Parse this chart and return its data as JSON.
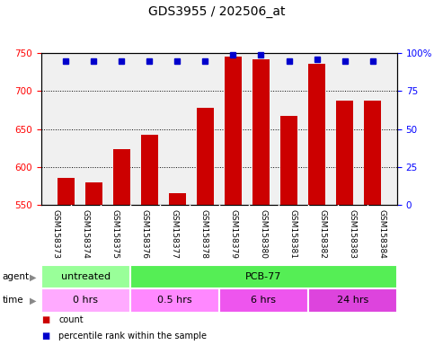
{
  "title": "GDS3955 / 202506_at",
  "samples": [
    "GSM158373",
    "GSM158374",
    "GSM158375",
    "GSM158376",
    "GSM158377",
    "GSM158378",
    "GSM158379",
    "GSM158380",
    "GSM158381",
    "GSM158382",
    "GSM158383",
    "GSM158384"
  ],
  "counts": [
    586,
    580,
    623,
    643,
    565,
    678,
    746,
    742,
    667,
    736,
    688,
    687
  ],
  "percentiles": [
    95,
    95,
    95,
    95,
    95,
    95,
    99,
    99,
    95,
    96,
    95,
    95
  ],
  "ylim_left": [
    550,
    750
  ],
  "ylim_right": [
    0,
    100
  ],
  "yticks_left": [
    550,
    600,
    650,
    700,
    750
  ],
  "yticks_right": [
    0,
    25,
    50,
    75,
    100
  ],
  "bar_color": "#cc0000",
  "dot_color": "#0000cc",
  "background_color": "#ffffff",
  "grid_lines": [
    600,
    650,
    700
  ],
  "agent_groups": [
    {
      "label": "untreated",
      "start": 0,
      "end": 3,
      "color": "#99ff99"
    },
    {
      "label": "PCB-77",
      "start": 3,
      "end": 12,
      "color": "#55ee55"
    }
  ],
  "time_groups": [
    {
      "label": "0 hrs",
      "start": 0,
      "end": 3,
      "color": "#ffaaff"
    },
    {
      "label": "0.5 hrs",
      "start": 3,
      "end": 6,
      "color": "#ff88ff"
    },
    {
      "label": "6 hrs",
      "start": 6,
      "end": 9,
      "color": "#ee55ee"
    },
    {
      "label": "24 hrs",
      "start": 9,
      "end": 12,
      "color": "#dd44dd"
    }
  ],
  "legend_items": [
    {
      "label": "count",
      "color": "#cc0000"
    },
    {
      "label": "percentile rank within the sample",
      "color": "#0000cc"
    }
  ]
}
